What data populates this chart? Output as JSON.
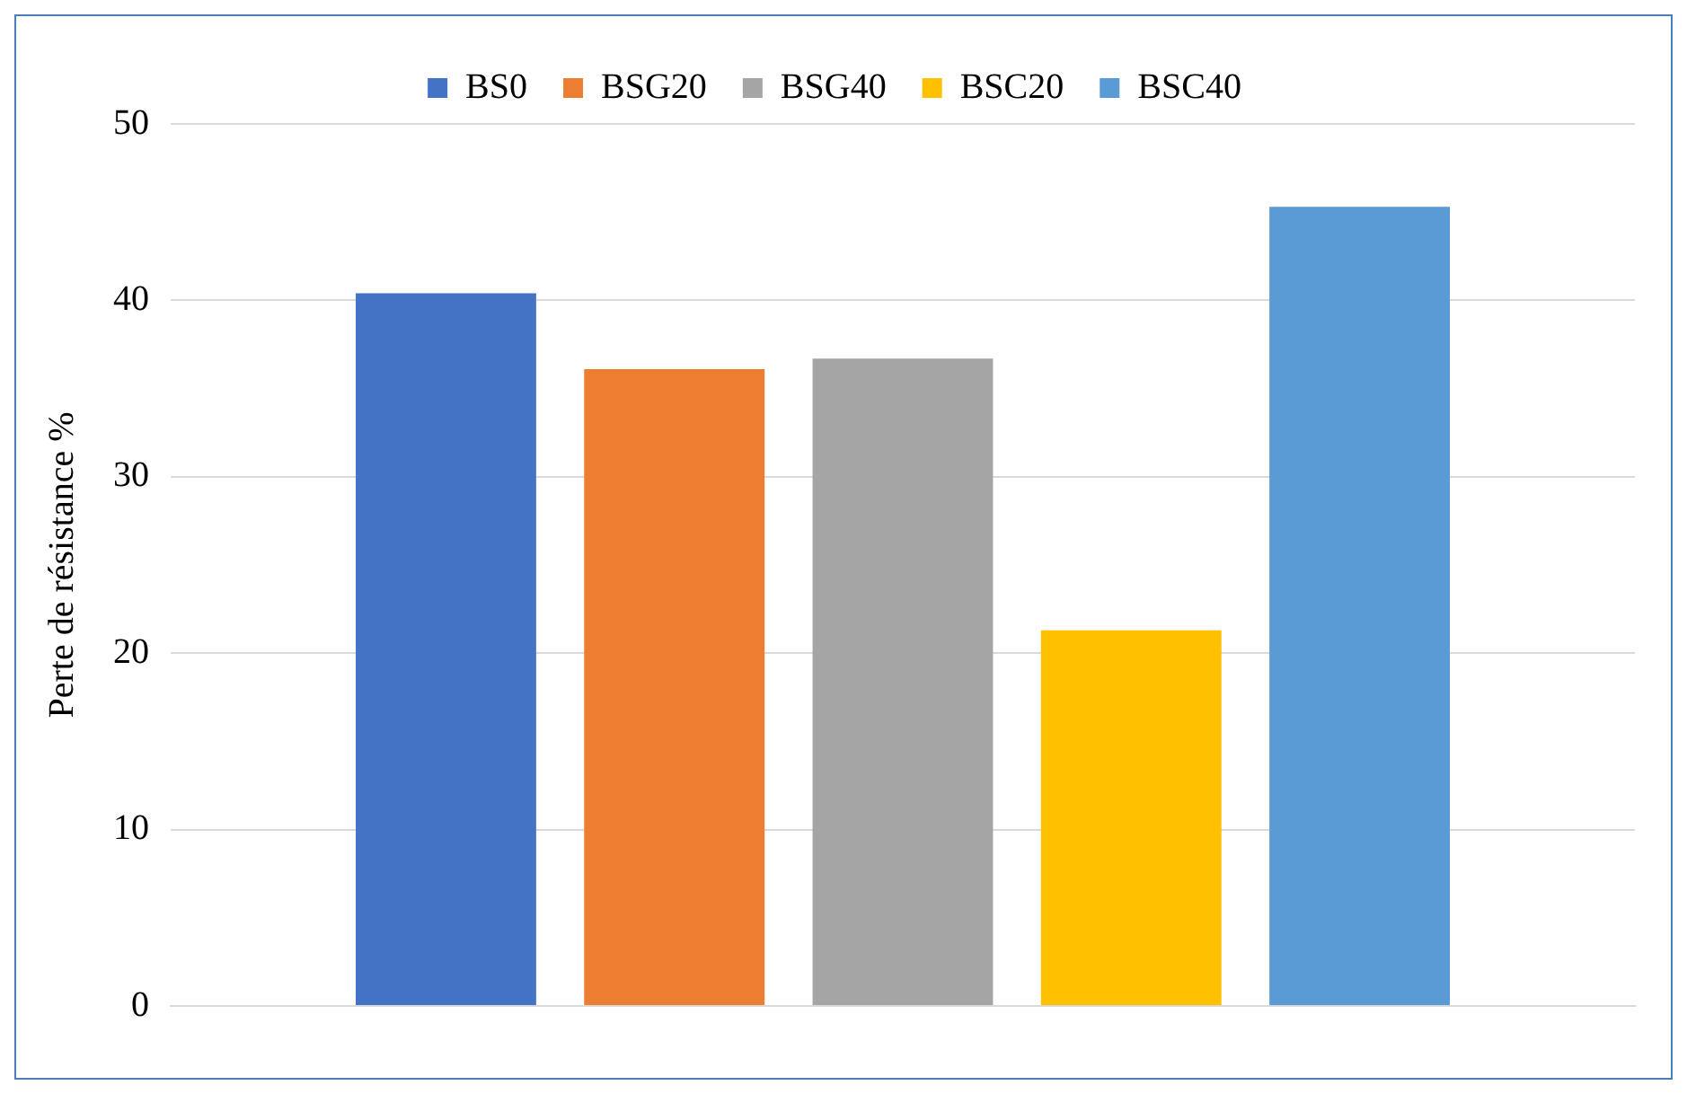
{
  "chart_data": {
    "type": "bar",
    "ylabel": "Perte de résistance %",
    "categories": [
      null
    ],
    "series": [
      {
        "name": "BS0",
        "color": "#4472c4",
        "values": [
          40.4
        ]
      },
      {
        "name": "BSG20",
        "color": "#ed7d31",
        "values": [
          36.1
        ]
      },
      {
        "name": "BSG40",
        "color": "#a5a5a5",
        "values": [
          36.7
        ]
      },
      {
        "name": "BSC20",
        "color": "#ffc000",
        "values": [
          21.3
        ]
      },
      {
        "name": "BSC40",
        "color": "#5b9bd5",
        "values": [
          45.3
        ]
      }
    ],
    "ylim": [
      0,
      50
    ],
    "yticks": [
      0,
      10,
      20,
      30,
      40,
      50
    ],
    "grid": "y",
    "legend": "top"
  }
}
